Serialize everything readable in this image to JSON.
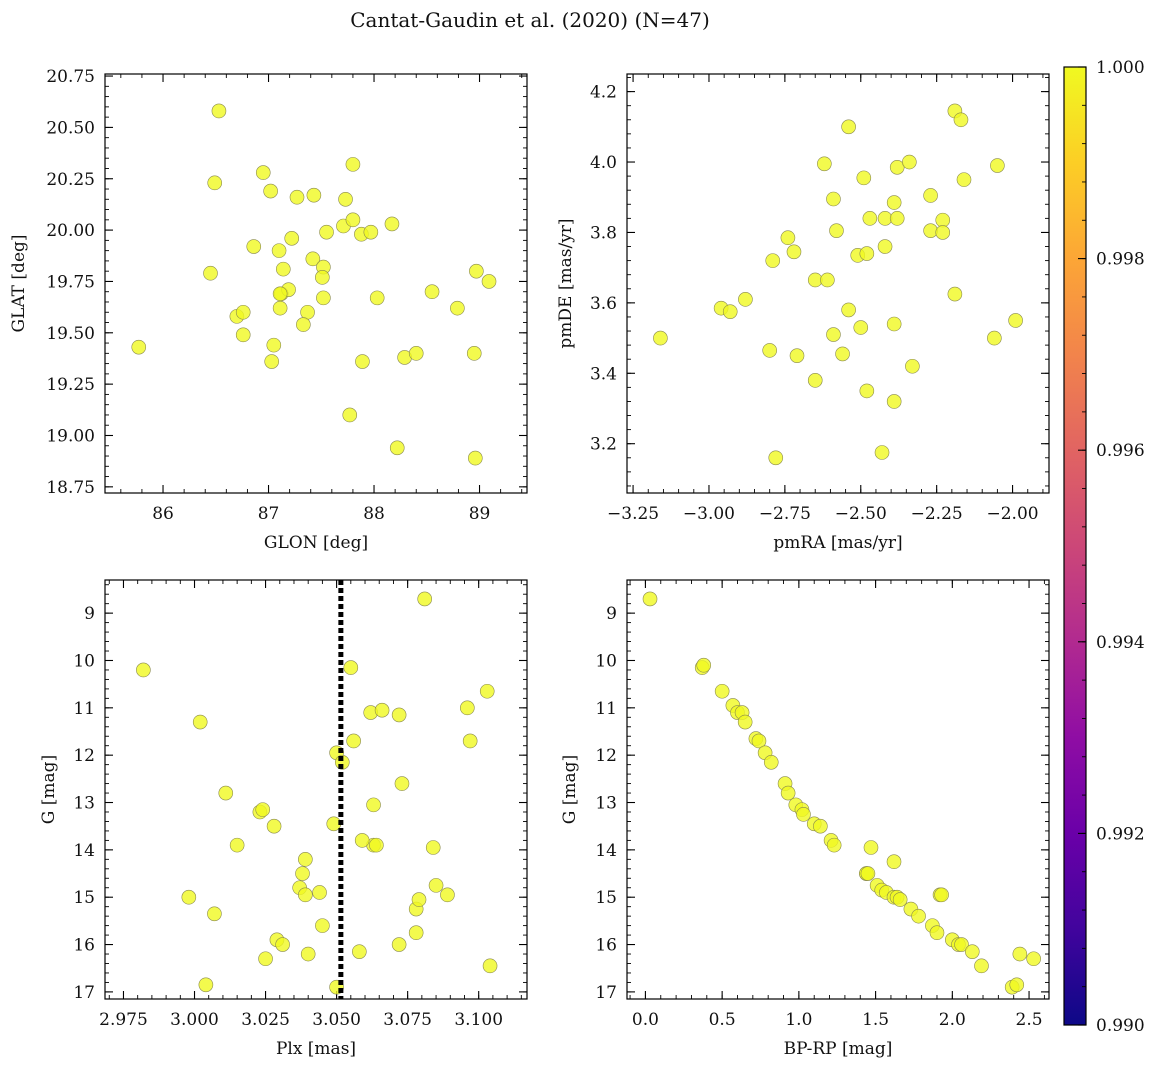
{
  "title": "Cantat-Gaudin et al. (2020) (N=47)",
  "colors": {
    "point_fill": "#f0f921",
    "point_edge": "#8a8a50",
    "vline": "#000000",
    "axis": "#000000"
  },
  "chart_data": [
    {
      "id": "glon_glat",
      "type": "scatter",
      "xlabel": "GLON [deg]",
      "ylabel": "GLAT [deg]",
      "xlim": [
        85.45,
        89.45
      ],
      "ylim": [
        18.72,
        20.76
      ],
      "yreverse": false,
      "xticks": [
        86,
        87,
        88,
        89
      ],
      "xtick_labels": [
        "86",
        "87",
        "88",
        "89"
      ],
      "yticks": [
        18.75,
        19.0,
        19.25,
        19.5,
        19.75,
        20.0,
        20.25,
        20.5,
        20.75
      ],
      "ytick_labels": [
        "18.75",
        "19.00",
        "19.25",
        "19.50",
        "19.75",
        "20.00",
        "20.25",
        "20.50",
        "20.75"
      ],
      "x": [
        85.77,
        86.53,
        86.49,
        86.45,
        86.95,
        87.02,
        87.27,
        87.43,
        87.73,
        87.8,
        87.71,
        87.55,
        87.8,
        87.88,
        87.97,
        88.17,
        86.86,
        87.1,
        87.22,
        87.42,
        87.52,
        87.14,
        87.51,
        87.52,
        86.7,
        86.76,
        87.12,
        87.19,
        87.11,
        87.37,
        86.76,
        87.05,
        87.33,
        88.03,
        88.55,
        88.79,
        88.97,
        89.09,
        87.03,
        87.89,
        88.29,
        88.4,
        88.95,
        87.77,
        88.22,
        88.96,
        87.11
      ],
      "y": [
        19.43,
        20.58,
        20.23,
        19.79,
        20.28,
        20.19,
        20.16,
        20.17,
        20.15,
        20.32,
        20.02,
        19.99,
        20.05,
        19.98,
        19.99,
        20.03,
        19.92,
        19.9,
        19.96,
        19.86,
        19.82,
        19.81,
        19.77,
        19.67,
        19.58,
        19.6,
        19.69,
        19.71,
        19.62,
        19.6,
        19.49,
        19.44,
        19.54,
        19.67,
        19.7,
        19.62,
        19.8,
        19.75,
        19.36,
        19.36,
        19.38,
        19.4,
        19.4,
        19.1,
        18.94,
        18.89,
        19.69
      ],
      "colorvalue": 1.0
    },
    {
      "id": "pmra_pmde",
      "type": "scatter",
      "xlabel": "pmRA [mas/yr]",
      "ylabel": "pmDE [mas/yr]",
      "xlim": [
        -3.27,
        -1.88
      ],
      "ylim": [
        3.06,
        4.25
      ],
      "yreverse": false,
      "xticks": [
        -3.25,
        -3.0,
        -2.75,
        -2.5,
        -2.25,
        -2.0
      ],
      "xtick_labels": [
        "−3.25",
        "−3.00",
        "−2.75",
        "−2.50",
        "−2.25",
        "−2.00"
      ],
      "yticks": [
        3.2,
        3.4,
        3.6,
        3.8,
        4.0,
        4.2
      ],
      "ytick_labels": [
        "3.2",
        "3.4",
        "3.6",
        "3.8",
        "4.0",
        "4.2"
      ],
      "x": [
        -3.16,
        -2.96,
        -2.93,
        -2.88,
        -2.79,
        -2.78,
        -2.74,
        -2.71,
        -2.72,
        -2.65,
        -2.65,
        -2.62,
        -2.61,
        -2.59,
        -2.59,
        -2.58,
        -2.56,
        -2.54,
        -2.54,
        -2.51,
        -2.49,
        -2.48,
        -2.48,
        -2.47,
        -2.43,
        -2.42,
        -2.42,
        -2.39,
        -2.39,
        -2.39,
        -2.38,
        -2.38,
        -2.34,
        -2.33,
        -2.27,
        -2.27,
        -2.23,
        -2.23,
        -2.19,
        -2.19,
        -2.17,
        -2.16,
        -2.06,
        -2.05,
        -1.99,
        -2.8,
        -2.5
      ],
      "y": [
        3.5,
        3.585,
        3.575,
        3.61,
        3.72,
        3.16,
        3.785,
        3.45,
        3.745,
        3.38,
        3.665,
        3.995,
        3.665,
        3.895,
        3.51,
        3.805,
        3.455,
        4.1,
        3.58,
        3.735,
        3.955,
        3.35,
        3.74,
        3.84,
        3.175,
        3.76,
        3.84,
        3.885,
        3.54,
        3.32,
        3.985,
        3.84,
        4.0,
        3.42,
        3.905,
        3.805,
        3.835,
        3.8,
        4.145,
        3.625,
        4.12,
        3.95,
        3.5,
        3.99,
        3.55,
        3.465,
        3.53
      ],
      "colorvalue": 1.0
    },
    {
      "id": "plx_g",
      "type": "scatter",
      "xlabel": "Plx [mas]",
      "ylabel": "G [mag]",
      "xlim": [
        2.9685,
        3.117
      ],
      "ylim": [
        17.15,
        8.3
      ],
      "yreverse": true,
      "xticks": [
        2.975,
        3.0,
        3.025,
        3.05,
        3.075,
        3.1
      ],
      "xtick_labels": [
        "2.975",
        "3.000",
        "3.025",
        "3.050",
        "3.075",
        "3.100"
      ],
      "yticks": [
        9,
        10,
        11,
        12,
        13,
        14,
        15,
        16,
        17
      ],
      "ytick_labels": [
        "9",
        "10",
        "11",
        "12",
        "13",
        "14",
        "15",
        "16",
        "17"
      ],
      "vline": 3.0515,
      "x": [
        2.982,
        3.002,
        3.011,
        3.023,
        3.024,
        3.028,
        3.015,
        2.998,
        3.007,
        3.004,
        3.029,
        3.031,
        3.025,
        3.037,
        3.038,
        3.039,
        3.044,
        3.039,
        3.045,
        3.04,
        3.05,
        3.049,
        3.05,
        3.052,
        3.055,
        3.056,
        3.058,
        3.062,
        3.063,
        3.066,
        3.072,
        3.073,
        3.063,
        3.064,
        3.059,
        3.072,
        3.078,
        3.079,
        3.078,
        3.084,
        3.085,
        3.089,
        3.081,
        3.096,
        3.097,
        3.103,
        3.104
      ],
      "y": [
        10.2,
        11.3,
        12.8,
        13.2,
        13.15,
        13.5,
        13.9,
        15.0,
        15.35,
        16.85,
        15.9,
        16.0,
        16.3,
        14.8,
        14.5,
        14.95,
        14.9,
        14.2,
        15.6,
        16.2,
        11.95,
        13.45,
        16.9,
        12.15,
        10.15,
        11.7,
        16.15,
        11.1,
        13.05,
        11.05,
        11.15,
        12.6,
        13.9,
        13.9,
        13.8,
        16.0,
        15.25,
        15.05,
        15.75,
        13.95,
        14.75,
        14.95,
        8.7,
        11.0,
        11.7,
        10.65,
        16.45
      ],
      "colorvalue": 1.0
    },
    {
      "id": "bprp_g",
      "type": "scatter",
      "xlabel": "BP-RP [mag]",
      "ylabel": "G [mag]",
      "xlim": [
        -0.12,
        2.63
      ],
      "ylim": [
        17.15,
        8.3
      ],
      "yreverse": true,
      "xticks": [
        0.0,
        0.5,
        1.0,
        1.5,
        2.0,
        2.5
      ],
      "xtick_labels": [
        "0.0",
        "0.5",
        "1.0",
        "1.5",
        "2.0",
        "2.5"
      ],
      "yticks": [
        9,
        10,
        11,
        12,
        13,
        14,
        15,
        16,
        17
      ],
      "ytick_labels": [
        "9",
        "10",
        "11",
        "12",
        "13",
        "14",
        "15",
        "16",
        "17"
      ],
      "x": [
        0.03,
        0.37,
        0.38,
        0.5,
        0.57,
        0.6,
        0.63,
        0.65,
        0.72,
        0.74,
        0.78,
        0.82,
        0.91,
        0.93,
        0.98,
        1.02,
        1.03,
        1.1,
        1.14,
        1.21,
        1.23,
        1.44,
        1.44,
        1.47,
        1.51,
        1.54,
        1.57,
        1.62,
        1.64,
        1.66,
        1.73,
        1.78,
        1.87,
        1.92,
        1.93,
        1.9,
        2.0,
        2.04,
        2.06,
        2.13,
        2.19,
        2.39,
        2.42,
        2.44,
        2.53,
        1.45,
        1.62
      ],
      "y": [
        8.7,
        10.15,
        10.1,
        10.65,
        10.95,
        11.1,
        11.1,
        11.3,
        11.65,
        11.7,
        11.95,
        12.15,
        12.6,
        12.8,
        13.05,
        13.15,
        13.25,
        13.45,
        13.5,
        13.8,
        13.9,
        14.5,
        14.5,
        13.95,
        14.75,
        14.85,
        14.9,
        15.0,
        15.0,
        15.05,
        15.25,
        15.4,
        15.6,
        14.95,
        14.95,
        15.75,
        15.9,
        16.0,
        16.0,
        16.15,
        16.45,
        16.9,
        16.85,
        16.2,
        16.3,
        14.5,
        14.25
      ],
      "colorvalue": 1.0
    }
  ],
  "colorbar": {
    "min": 0.99,
    "max": 1.0,
    "ticks": [
      0.99,
      0.992,
      0.994,
      0.996,
      0.998,
      1.0
    ],
    "tick_labels": [
      "0.990",
      "0.992",
      "0.994",
      "0.996",
      "0.998",
      "1.000"
    ],
    "colormap": [
      "#0d0887",
      "#41049d",
      "#6a00a8",
      "#8f0da4",
      "#b12a90",
      "#cc4778",
      "#e16462",
      "#f2844b",
      "#fca636",
      "#fcce25",
      "#f0f921"
    ]
  }
}
